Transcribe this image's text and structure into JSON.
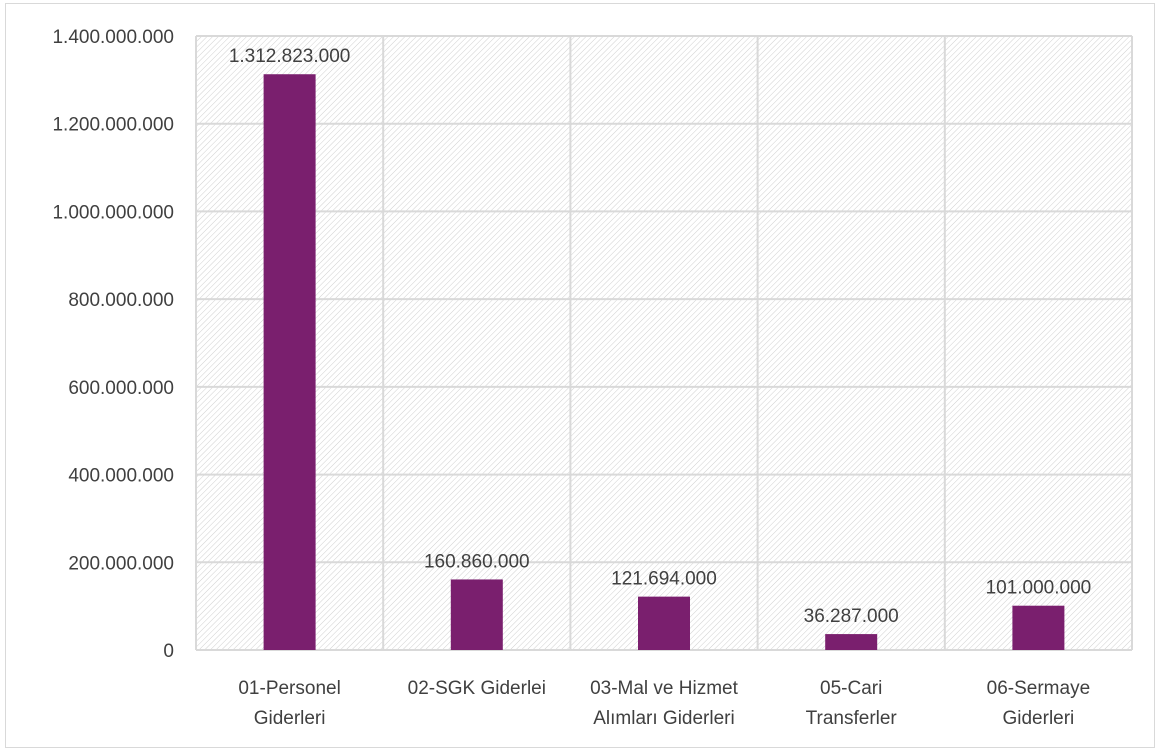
{
  "chart_data": {
    "type": "bar",
    "categories": [
      [
        "01-Personel",
        "Giderleri"
      ],
      [
        "02-SGK Giderlei"
      ],
      [
        "03-Mal ve Hizmet",
        "Alımları Giderleri"
      ],
      [
        "05-Cari",
        "Transferler"
      ],
      [
        "06-Sermaye",
        "Giderleri"
      ]
    ],
    "values": [
      1312823000,
      160860000,
      121694000,
      36287000,
      101000000
    ],
    "data_labels": [
      "1.312.823.000",
      "160.860.000",
      "121.694.000",
      "36.287.000",
      "101.000.000"
    ],
    "ylim": [
      0,
      1400000000
    ],
    "yticks": [
      0,
      200000000,
      400000000,
      600000000,
      800000000,
      1000000000,
      1200000000,
      1400000000
    ],
    "ytick_labels": [
      "0",
      "200.000.000",
      "400.000.000",
      "600.000.000",
      "800.000.000",
      "1.000.000.000",
      "1.200.000.000",
      "1.400.000.000"
    ],
    "title": "",
    "xlabel": "",
    "ylabel": "",
    "grid": true,
    "legend": "none",
    "colors": {
      "bar": "#7a1f6e",
      "grid": "#d9d9d9",
      "plot_hatch": "#d0d0d0",
      "text": "#404040"
    }
  }
}
